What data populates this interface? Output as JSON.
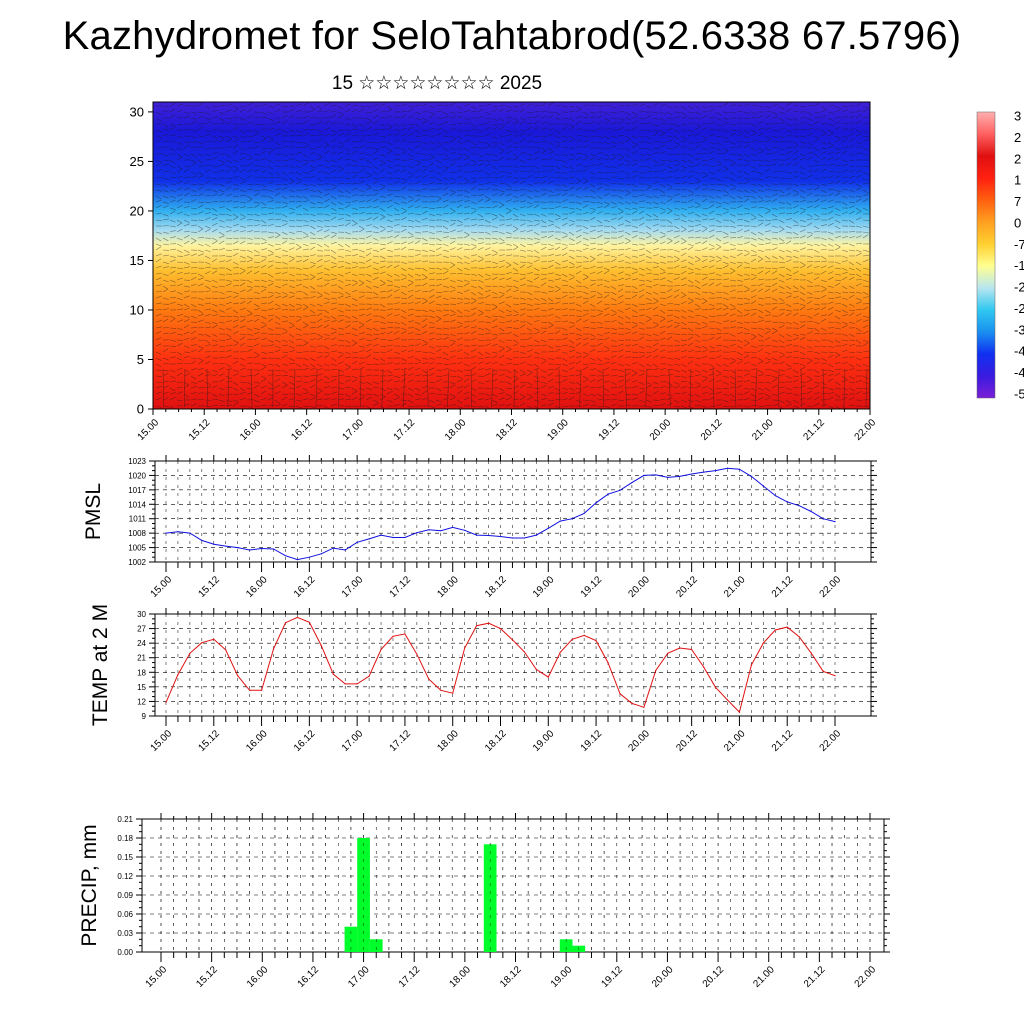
{
  "title": "Kazhydromet for SeloTahtabrod(52.6338 67.5796)",
  "subtitle": "15 ☆☆☆☆☆☆☆☆ 2025",
  "time_labels": [
    "15.00",
    "15.12",
    "16.00",
    "16.12",
    "17.00",
    "17.12",
    "18.00",
    "18.12",
    "19.00",
    "19.12",
    "20.00",
    "20.12",
    "21.00",
    "21.12",
    "22.00"
  ],
  "chart_data": [
    {
      "type": "heatmap",
      "title": "",
      "ylabel": "",
      "y_ticks": [
        0,
        5,
        10,
        15,
        20,
        25,
        30
      ],
      "ylim": [
        0,
        31
      ],
      "colorbar_labels": [
        "3",
        "2",
        "2",
        "1",
        "7",
        "0",
        "-7",
        "-1",
        "-2",
        "-2",
        "-3",
        "-4",
        "-4",
        "-5"
      ],
      "colors": [
        "#7a1fd6",
        "#3b1be0",
        "#1030f0",
        "#1a90f0",
        "#30c8f0",
        "#b8e6f0",
        "#ffff90",
        "#ffd030",
        "#ffa020",
        "#ff6010",
        "#ff2010",
        "#e01010",
        "#ff6060",
        "#ffb0b0"
      ],
      "color_stops": [
        {
          "level": 0,
          "color": "#e01010"
        },
        {
          "level": 5,
          "color": "#ff3010"
        },
        {
          "level": 10,
          "color": "#ff7a10"
        },
        {
          "level": 14,
          "color": "#ffc030"
        },
        {
          "level": 16.5,
          "color": "#fff4a0"
        },
        {
          "level": 18,
          "color": "#a8dcf0"
        },
        {
          "level": 20,
          "color": "#30b0f0"
        },
        {
          "level": 23,
          "color": "#1030e8"
        },
        {
          "level": 28,
          "color": "#1a18d8"
        },
        {
          "level": 31,
          "color": "#4020d8"
        }
      ]
    },
    {
      "type": "line",
      "ylabel": "PMSL",
      "ylim": [
        1002,
        1023
      ],
      "y_ticks": [
        1002,
        1005,
        1008,
        1011,
        1014,
        1017,
        1020,
        1023
      ],
      "color": "#1010e0",
      "x": [
        0,
        3,
        6,
        9,
        12,
        15,
        18,
        21,
        24,
        27,
        30,
        33,
        36,
        39,
        42,
        45,
        48,
        51,
        54,
        57,
        60,
        63,
        66,
        69,
        72,
        75,
        78,
        81,
        84,
        87,
        90,
        93,
        96,
        99,
        102,
        105,
        108,
        111,
        114,
        117,
        120,
        123,
        126,
        129,
        132,
        135,
        138,
        141,
        144,
        147,
        150,
        153,
        156,
        159,
        162,
        165,
        168
      ],
      "values": [
        1008,
        1008.3,
        1008,
        1006.5,
        1005.7,
        1005.3,
        1005,
        1004.5,
        1004.8,
        1004.7,
        1003.3,
        1002.5,
        1003,
        1003.7,
        1004.9,
        1004.5,
        1006.1,
        1006.8,
        1007.6,
        1007.1,
        1007.1,
        1008.1,
        1008.7,
        1008.5,
        1009.2,
        1008.6,
        1007.6,
        1007.5,
        1007.3,
        1007,
        1007,
        1007.6,
        1009,
        1010.5,
        1011,
        1012.1,
        1014.3,
        1016.1,
        1016.9,
        1018.5,
        1020,
        1020.1,
        1019.6,
        1019.8,
        1020.3,
        1020.7,
        1021,
        1021.5,
        1021.3,
        1019.8,
        1017.8,
        1015.8,
        1014.5,
        1013.7,
        1012.5,
        1011,
        1010.4
      ]
    },
    {
      "type": "line",
      "ylabel": "TEMP at 2 M",
      "ylim": [
        9,
        30
      ],
      "y_ticks": [
        9,
        12,
        15,
        18,
        21,
        24,
        27,
        30
      ],
      "color": "#e01010",
      "x": [
        0,
        3,
        6,
        9,
        12,
        15,
        18,
        21,
        24,
        27,
        30,
        33,
        36,
        39,
        42,
        45,
        48,
        51,
        54,
        57,
        60,
        63,
        66,
        69,
        72,
        75,
        78,
        81,
        84,
        87,
        90,
        93,
        96,
        99,
        102,
        105,
        108,
        111,
        114,
        117,
        120,
        123,
        126,
        129,
        132,
        135,
        138,
        141,
        144,
        147,
        150,
        153,
        156,
        159,
        162,
        165,
        168
      ],
      "values": [
        11.8,
        17.5,
        21.9,
        24.1,
        24.8,
        22.6,
        17.3,
        14.3,
        14.3,
        22.8,
        28.2,
        29.3,
        28.3,
        23.5,
        17.6,
        15.6,
        15.6,
        17.2,
        22.7,
        25.4,
        25.9,
        21.7,
        16.6,
        14.3,
        13.7,
        23,
        27.6,
        28.1,
        27,
        24.7,
        22.2,
        18.6,
        17,
        22.1,
        24.8,
        25.6,
        24.5,
        20,
        13.6,
        11.6,
        10.8,
        18.4,
        21.9,
        23,
        22.7,
        19.1,
        14.9,
        12.3,
        9.8,
        19.5,
        24,
        26.7,
        27.3,
        25.3,
        22,
        18.2,
        17.3
      ]
    },
    {
      "type": "bar",
      "ylabel": "PRECIP, mm",
      "ylim": [
        0,
        0.21
      ],
      "y_ticks": [
        "0.00",
        "0.03",
        "0.06",
        "0.09",
        "0.12",
        "0.15",
        "0.18",
        "0.21"
      ],
      "color": "#00ff2a",
      "x": [
        45,
        48,
        51,
        78,
        96,
        99
      ],
      "values": [
        0.04,
        0.18,
        0.02,
        0.17,
        0.02,
        0.01
      ]
    }
  ]
}
